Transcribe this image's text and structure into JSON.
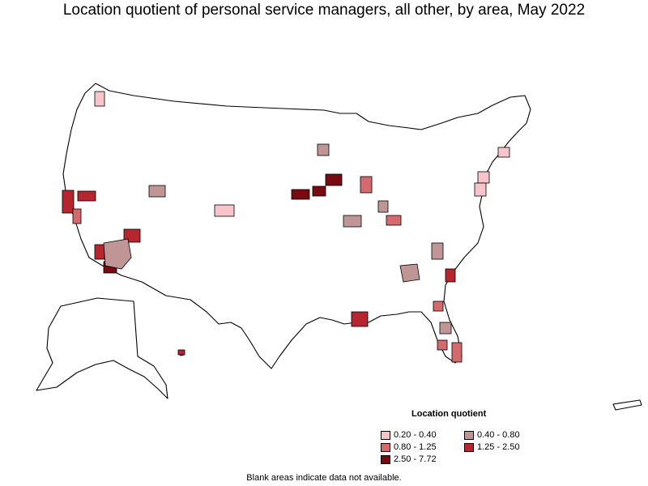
{
  "title": "Location quotient of personal service managers, all other, by area, May 2022",
  "legend": {
    "title": "Location quotient",
    "items": [
      {
        "label": "0.20 - 0.40",
        "color": "#f7c4c9"
      },
      {
        "label": "0.40 - 0.80",
        "color": "#bf9595"
      },
      {
        "label": "0.80 - 1.25",
        "color": "#d46a6e"
      },
      {
        "label": "1.25 - 2.50",
        "color": "#b5262e"
      },
      {
        "label": "2.50 - 7.72",
        "color": "#7a0a12"
      }
    ]
  },
  "footnote": "Blank areas indicate data not available."
}
